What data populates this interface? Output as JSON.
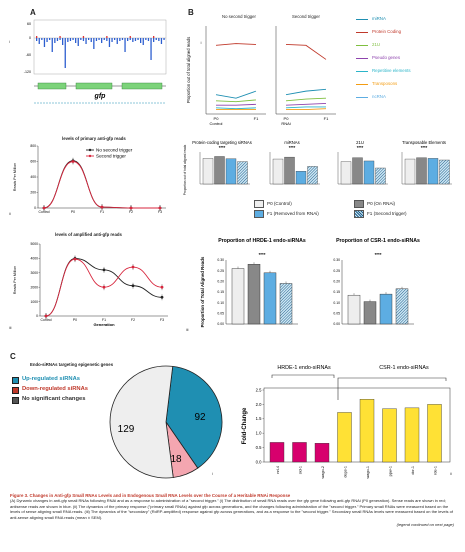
{
  "panel_labels": {
    "A": "A",
    "B": "B",
    "C": "C"
  },
  "panel_a": {
    "gene_label": "gfp",
    "roman_i": "i",
    "roman_ii": "ii",
    "roman_iii": "iii",
    "top_axis_ticks": [
      "60",
      "0",
      "-60",
      "-120"
    ]
  },
  "primary_plot": {
    "title": "levels of primary anti-gfp reads",
    "ylabel": "Reads Per Million",
    "legend": [
      "No second trigger",
      "Second trigger"
    ],
    "x_ticks": [
      "Control",
      "P0",
      "F1",
      "F2",
      "F3"
    ],
    "y_ticks": [
      "0",
      "200",
      "400",
      "600",
      "800"
    ],
    "no_second": [
      0,
      610,
      10,
      0,
      0
    ],
    "second": [
      0,
      600,
      12,
      0,
      0
    ]
  },
  "amplified_plot": {
    "title": "levels of amplified anti-gfp reads",
    "ylabel": "Reads Per Million",
    "xlabel": "Generation",
    "x_ticks": [
      "Control",
      "P0",
      "F1",
      "F2",
      "F3"
    ],
    "y_ticks": [
      "0",
      "1000",
      "2000",
      "3000",
      "4000",
      "5000"
    ],
    "no_second": [
      0,
      4000,
      3200,
      2100,
      1300
    ],
    "second": [
      0,
      3950,
      2000,
      3400,
      2000
    ]
  },
  "panel_b_lines": {
    "ylabel": "Proportion out of total aligned reads",
    "left_title": "No second trigger",
    "right_title": "Second trigger",
    "x_ticks_left": [
      "P0",
      "F1"
    ],
    "x_ticks_right": [
      "P0",
      "F1"
    ],
    "x_sub_left": "Control",
    "x_sub_right": "RNAi",
    "legend": [
      {
        "label": "miRNA",
        "color": "#1f8fb2"
      },
      {
        "label": "Protein Coding",
        "color": "#c0392b"
      },
      {
        "label": "21U",
        "color": "#7fbf3f"
      },
      {
        "label": "Pseudo genes",
        "color": "#8e44ad"
      },
      {
        "label": "Repetitive elements",
        "color": "#2bb5c9"
      },
      {
        "label": "Transposons",
        "color": "#f39c12"
      },
      {
        "label": "ncRNA",
        "color": "#5dade2"
      }
    ]
  },
  "panel_b_bars": {
    "titles": [
      "Protein-coding targeting siRNAs",
      "miRNAs",
      "21U",
      "Transposable Elements"
    ],
    "sig": [
      "****",
      "****",
      "****",
      "****"
    ],
    "ylabel": "Proportion out of total aligned reads",
    "values": [
      [
        0.8,
        0.86,
        0.79,
        0.7
      ],
      [
        0.78,
        0.84,
        0.4,
        0.55
      ],
      [
        0.7,
        0.82,
        0.72,
        0.5
      ],
      [
        0.78,
        0.82,
        0.8,
        0.75
      ]
    ],
    "legend": [
      "P0 (Control)",
      "P0 (On RNAi)",
      "F1 (Removed from RNAi)",
      "F1 (Second trigger)"
    ]
  },
  "hrde_csr": {
    "titles": [
      "Proportion of HRDE-1 endo-siRNAs",
      "Proportion of CSR-1 endo-siRNAs"
    ],
    "sig": [
      "****",
      "****"
    ],
    "ylabel": "Proportion of Total Aligned Reads",
    "hrde_values": [
      0.26,
      0.28,
      0.24,
      0.19
    ],
    "csr_values": [
      0.135,
      0.105,
      0.14,
      0.165
    ],
    "hrde_ticks": [
      "0.00",
      "0.05",
      "0.10",
      "0.15",
      "0.20",
      "0.25",
      "0.30"
    ],
    "csr_ticks": [
      "0.00",
      "0.05",
      "0.10",
      "0.15",
      "0.20",
      "0.25",
      "0.30"
    ],
    "roman": "iii"
  },
  "panel_c": {
    "title": "Endo-siRNAs targeting epigenetic genes",
    "legend": [
      {
        "label": "Up-regulated siRNAs",
        "color": "#1f8fb2"
      },
      {
        "label": "Down-regulated siRNAs",
        "color": "#c0392b"
      },
      {
        "label": "No significant changes",
        "color": "#555555"
      }
    ],
    "pie": [
      {
        "label": "92",
        "value": 92,
        "color": "#1f8fb2"
      },
      {
        "label": "18",
        "value": 18,
        "color": "#f4a6b0"
      },
      {
        "label": "129",
        "value": 129,
        "color": "#eeeeee"
      }
    ],
    "roman_i": "i",
    "roman_ii": "ii",
    "fold": {
      "ylabel": "Fold-Change",
      "group_titles": [
        "HRDE-1 endo-siRNAs",
        "CSR-1 endo-siRNAs"
      ],
      "y_ticks": [
        "0.0",
        "0.5",
        "1.0",
        "1.5",
        "2.0",
        "2.5"
      ],
      "categories": [
        "nrl-4",
        "sid-1",
        "wago-2",
        "deps-1",
        "wago-1",
        "ppw-1",
        "dcr-1",
        "rde-1"
      ],
      "values": [
        0.68,
        0.68,
        0.65,
        1.72,
        2.18,
        1.85,
        1.88,
        2.0
      ],
      "colors": [
        "#d7006d",
        "#d7006d",
        "#d7006d",
        "#ffe135",
        "#ffe135",
        "#ffe135",
        "#ffe135",
        "#ffe135"
      ]
    }
  },
  "caption": {
    "title": "Figure 3. Changes in Anti-gfp Small RNAs Levels and in Endogenous Small RNA Levels over the Course of a Heritable RNAi Response",
    "body": "(A) Dynamic changes in anti-gfp small RNAs following RNAi and as a response to administration of a \"second trigger.\" (i) The distribution of small RNA reads over the gfp gene following anti-gfp RNAi (P0 generation). Sense reads are shown in red; antisense reads are shown in blue. (ii) The dynamics of the primary response (\"primary small RNAs) against gfp across generations, and the changes following administration of the \"second trigger.\" Primary small RNAs were measured based on the levels of sense aligning small RNA reads. (iii) The dynamics of the \"secondary\" (RdRP-amplified) response against gfp across generations, and as a response to the \"second trigger.\" Secondary small RNAs levels were measured based on the levels of anti-sense aligning small RNA reads (mean ± SEM).",
    "continued": "(legend continued on next page)"
  }
}
